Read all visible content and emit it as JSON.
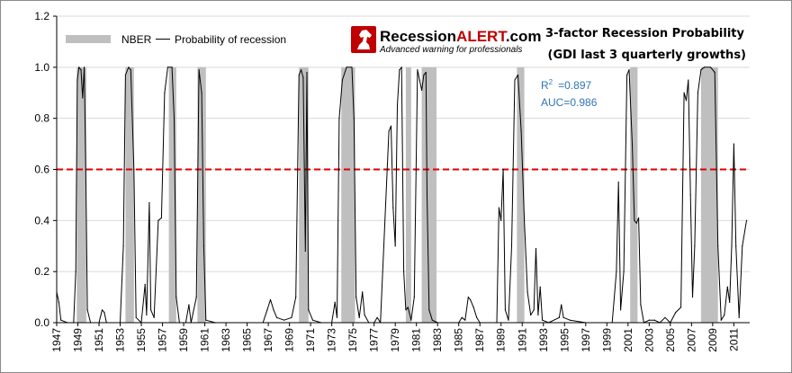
{
  "colors": {
    "nber": "#bfbfbf",
    "line": "#000000",
    "threshold": "#e00000",
    "stats": "#2e75b6",
    "logo_red": "#c00000"
  },
  "logo": {
    "brand_prefix": "Recession",
    "brand_highlight": "ALERT",
    "brand_suffix": ".com",
    "tagline": "Advanced warning for professionals",
    "icon": "chess-knight-icon"
  },
  "stats": {
    "r2_label": "R",
    "r2_sup": "2",
    "r2_value": "=0.897",
    "auc": "AUC=0.986"
  },
  "chart_data": {
    "type": "area",
    "title": "3-factor Recession Probability",
    "subtitle": "(GDI last 3 quarterly growths)",
    "xlabel": "",
    "ylabel": "",
    "xlim": [
      1947,
      2012.5
    ],
    "ylim": [
      0,
      1.2
    ],
    "yticks": [
      "0.0",
      "0.2",
      "0.4",
      "0.6",
      "0.8",
      "1.0",
      "1.2"
    ],
    "xticks": [
      "1947",
      "1949",
      "1951",
      "1953",
      "1955",
      "1957",
      "1959",
      "1961",
      "1963",
      "1965",
      "1967",
      "1969",
      "1971",
      "1973",
      "1975",
      "1977",
      "1979",
      "1981",
      "1983",
      "1985",
      "1987",
      "1989",
      "1991",
      "1993",
      "1995",
      "1997",
      "1999",
      "2001",
      "2003",
      "2005",
      "2007",
      "2009",
      "2011"
    ],
    "grid": "horizontal",
    "legend_position": "top-left",
    "threshold": 0.6,
    "series": [
      {
        "name": "NBER",
        "kind": "shaded",
        "ranges": [
          [
            1948.9,
            1949.8
          ],
          [
            1953.5,
            1954.3
          ],
          [
            1957.6,
            1958.3
          ],
          [
            1960.3,
            1961.1
          ],
          [
            1969.9,
            1970.8
          ],
          [
            1973.9,
            1975.2
          ],
          [
            1980.0,
            1980.5
          ],
          [
            1981.5,
            1982.9
          ],
          [
            1990.5,
            1991.2
          ],
          [
            2001.2,
            2001.9
          ],
          [
            2007.9,
            2009.5
          ]
        ]
      },
      {
        "name": "Probability of recession",
        "kind": "line",
        "points": [
          [
            1947.0,
            0.12
          ],
          [
            1947.2,
            0.08
          ],
          [
            1947.4,
            0.01
          ],
          [
            1948.0,
            0.0
          ],
          [
            1948.6,
            0.0
          ],
          [
            1948.8,
            0.2
          ],
          [
            1948.95,
            0.95
          ],
          [
            1949.1,
            1.0
          ],
          [
            1949.3,
            0.99
          ],
          [
            1949.45,
            0.88
          ],
          [
            1949.6,
            1.0
          ],
          [
            1949.75,
            0.6
          ],
          [
            1949.9,
            0.05
          ],
          [
            1950.2,
            0.0
          ],
          [
            1951.0,
            0.0
          ],
          [
            1951.3,
            0.05
          ],
          [
            1951.5,
            0.04
          ],
          [
            1951.7,
            0.0
          ],
          [
            1953.0,
            0.0
          ],
          [
            1953.3,
            0.3
          ],
          [
            1953.5,
            0.97
          ],
          [
            1953.8,
            1.0
          ],
          [
            1954.0,
            0.99
          ],
          [
            1954.3,
            0.6
          ],
          [
            1954.5,
            0.02
          ],
          [
            1955.0,
            0.0
          ],
          [
            1955.35,
            0.15
          ],
          [
            1955.5,
            0.03
          ],
          [
            1955.75,
            0.47
          ],
          [
            1955.9,
            0.05
          ],
          [
            1956.2,
            0.02
          ],
          [
            1956.6,
            0.4
          ],
          [
            1956.9,
            0.41
          ],
          [
            1957.2,
            0.9
          ],
          [
            1957.5,
            1.0
          ],
          [
            1957.9,
            1.0
          ],
          [
            1958.1,
            0.8
          ],
          [
            1958.3,
            0.1
          ],
          [
            1958.6,
            0.0
          ],
          [
            1959.2,
            0.0
          ],
          [
            1959.5,
            0.07
          ],
          [
            1959.7,
            0.0
          ],
          [
            1960.2,
            0.1
          ],
          [
            1960.45,
            0.99
          ],
          [
            1960.7,
            0.9
          ],
          [
            1960.9,
            0.3
          ],
          [
            1961.1,
            0.01
          ],
          [
            1962.0,
            0.0
          ],
          [
            1966.5,
            0.0
          ],
          [
            1966.9,
            0.05
          ],
          [
            1967.2,
            0.09
          ],
          [
            1967.5,
            0.05
          ],
          [
            1967.8,
            0.02
          ],
          [
            1968.5,
            0.01
          ],
          [
            1969.2,
            0.02
          ],
          [
            1969.6,
            0.1
          ],
          [
            1969.9,
            0.97
          ],
          [
            1970.1,
            0.99
          ],
          [
            1970.3,
            0.96
          ],
          [
            1970.5,
            0.28
          ],
          [
            1970.65,
            0.98
          ],
          [
            1970.8,
            0.05
          ],
          [
            1971.2,
            0.01
          ],
          [
            1972.0,
            0.0
          ],
          [
            1973.0,
            0.0
          ],
          [
            1973.3,
            0.08
          ],
          [
            1973.5,
            0.02
          ],
          [
            1973.7,
            0.8
          ],
          [
            1974.0,
            0.95
          ],
          [
            1974.4,
            1.0
          ],
          [
            1974.9,
            1.0
          ],
          [
            1975.1,
            0.8
          ],
          [
            1975.3,
            0.1
          ],
          [
            1975.6,
            0.02
          ],
          [
            1975.9,
            0.12
          ],
          [
            1976.1,
            0.03
          ],
          [
            1976.5,
            0.0
          ],
          [
            1977.0,
            0.0
          ],
          [
            1977.3,
            0.02
          ],
          [
            1977.6,
            0.0
          ],
          [
            1978.4,
            0.75
          ],
          [
            1978.6,
            0.77
          ],
          [
            1978.8,
            0.45
          ],
          [
            1979.0,
            0.3
          ],
          [
            1979.2,
            0.85
          ],
          [
            1979.4,
            0.99
          ],
          [
            1979.6,
            1.0
          ],
          [
            1979.8,
            0.2
          ],
          [
            1980.0,
            0.05
          ],
          [
            1980.2,
            0.06
          ],
          [
            1980.5,
            0.01
          ],
          [
            1980.8,
            0.1
          ],
          [
            1981.1,
            0.99
          ],
          [
            1981.3,
            0.95
          ],
          [
            1981.5,
            0.91
          ],
          [
            1981.7,
            0.97
          ],
          [
            1981.9,
            0.98
          ],
          [
            1982.0,
            0.5
          ],
          [
            1982.2,
            0.05
          ],
          [
            1982.5,
            0.01
          ],
          [
            1983.0,
            0.0
          ],
          [
            1985.0,
            0.0
          ],
          [
            1985.3,
            0.02
          ],
          [
            1985.6,
            0.01
          ],
          [
            1985.9,
            0.1
          ],
          [
            1986.1,
            0.09
          ],
          [
            1986.4,
            0.06
          ],
          [
            1986.7,
            0.02
          ],
          [
            1987.0,
            0.0
          ],
          [
            1988.6,
            0.0
          ],
          [
            1988.8,
            0.45
          ],
          [
            1989.0,
            0.4
          ],
          [
            1989.2,
            0.6
          ],
          [
            1989.4,
            0.05
          ],
          [
            1989.7,
            0.01
          ],
          [
            1990.0,
            0.3
          ],
          [
            1990.3,
            0.95
          ],
          [
            1990.6,
            0.97
          ],
          [
            1990.9,
            0.75
          ],
          [
            1991.2,
            0.4
          ],
          [
            1991.5,
            0.12
          ],
          [
            1991.8,
            0.03
          ],
          [
            1992.1,
            0.05
          ],
          [
            1992.3,
            0.29
          ],
          [
            1992.5,
            0.03
          ],
          [
            1992.7,
            0.14
          ],
          [
            1992.9,
            0.01
          ],
          [
            1993.5,
            0.0
          ],
          [
            1994.5,
            0.02
          ],
          [
            1994.7,
            0.07
          ],
          [
            1994.9,
            0.02
          ],
          [
            1995.5,
            0.01
          ],
          [
            1997.0,
            0.0
          ],
          [
            1999.5,
            0.0
          ],
          [
            1999.9,
            0.2
          ],
          [
            2000.1,
            0.55
          ],
          [
            2000.3,
            0.05
          ],
          [
            2000.6,
            0.2
          ],
          [
            2000.9,
            0.97
          ],
          [
            2001.1,
            0.99
          ],
          [
            2001.4,
            0.7
          ],
          [
            2001.6,
            0.4
          ],
          [
            2001.8,
            0.39
          ],
          [
            2002.0,
            0.41
          ],
          [
            2002.2,
            0.07
          ],
          [
            2002.5,
            0.0
          ],
          [
            2003.0,
            0.01
          ],
          [
            2003.5,
            0.01
          ],
          [
            2004.0,
            0.0
          ],
          [
            2004.5,
            0.02
          ],
          [
            2005.0,
            0.0
          ],
          [
            2005.5,
            0.04
          ],
          [
            2006.0,
            0.06
          ],
          [
            2006.3,
            0.9
          ],
          [
            2006.5,
            0.87
          ],
          [
            2006.7,
            0.95
          ],
          [
            2006.9,
            0.5
          ],
          [
            2007.1,
            0.1
          ],
          [
            2007.3,
            0.3
          ],
          [
            2007.6,
            0.9
          ],
          [
            2007.9,
            0.99
          ],
          [
            2008.2,
            1.0
          ],
          [
            2008.8,
            1.0
          ],
          [
            2009.2,
            0.98
          ],
          [
            2009.5,
            0.3
          ],
          [
            2009.8,
            0.01
          ],
          [
            2010.1,
            0.03
          ],
          [
            2010.4,
            0.14
          ],
          [
            2010.6,
            0.08
          ],
          [
            2010.8,
            0.3
          ],
          [
            2011.0,
            0.7
          ],
          [
            2011.2,
            0.3
          ],
          [
            2011.5,
            0.02
          ],
          [
            2011.8,
            0.3
          ],
          [
            2012.2,
            0.4
          ]
        ]
      }
    ]
  }
}
